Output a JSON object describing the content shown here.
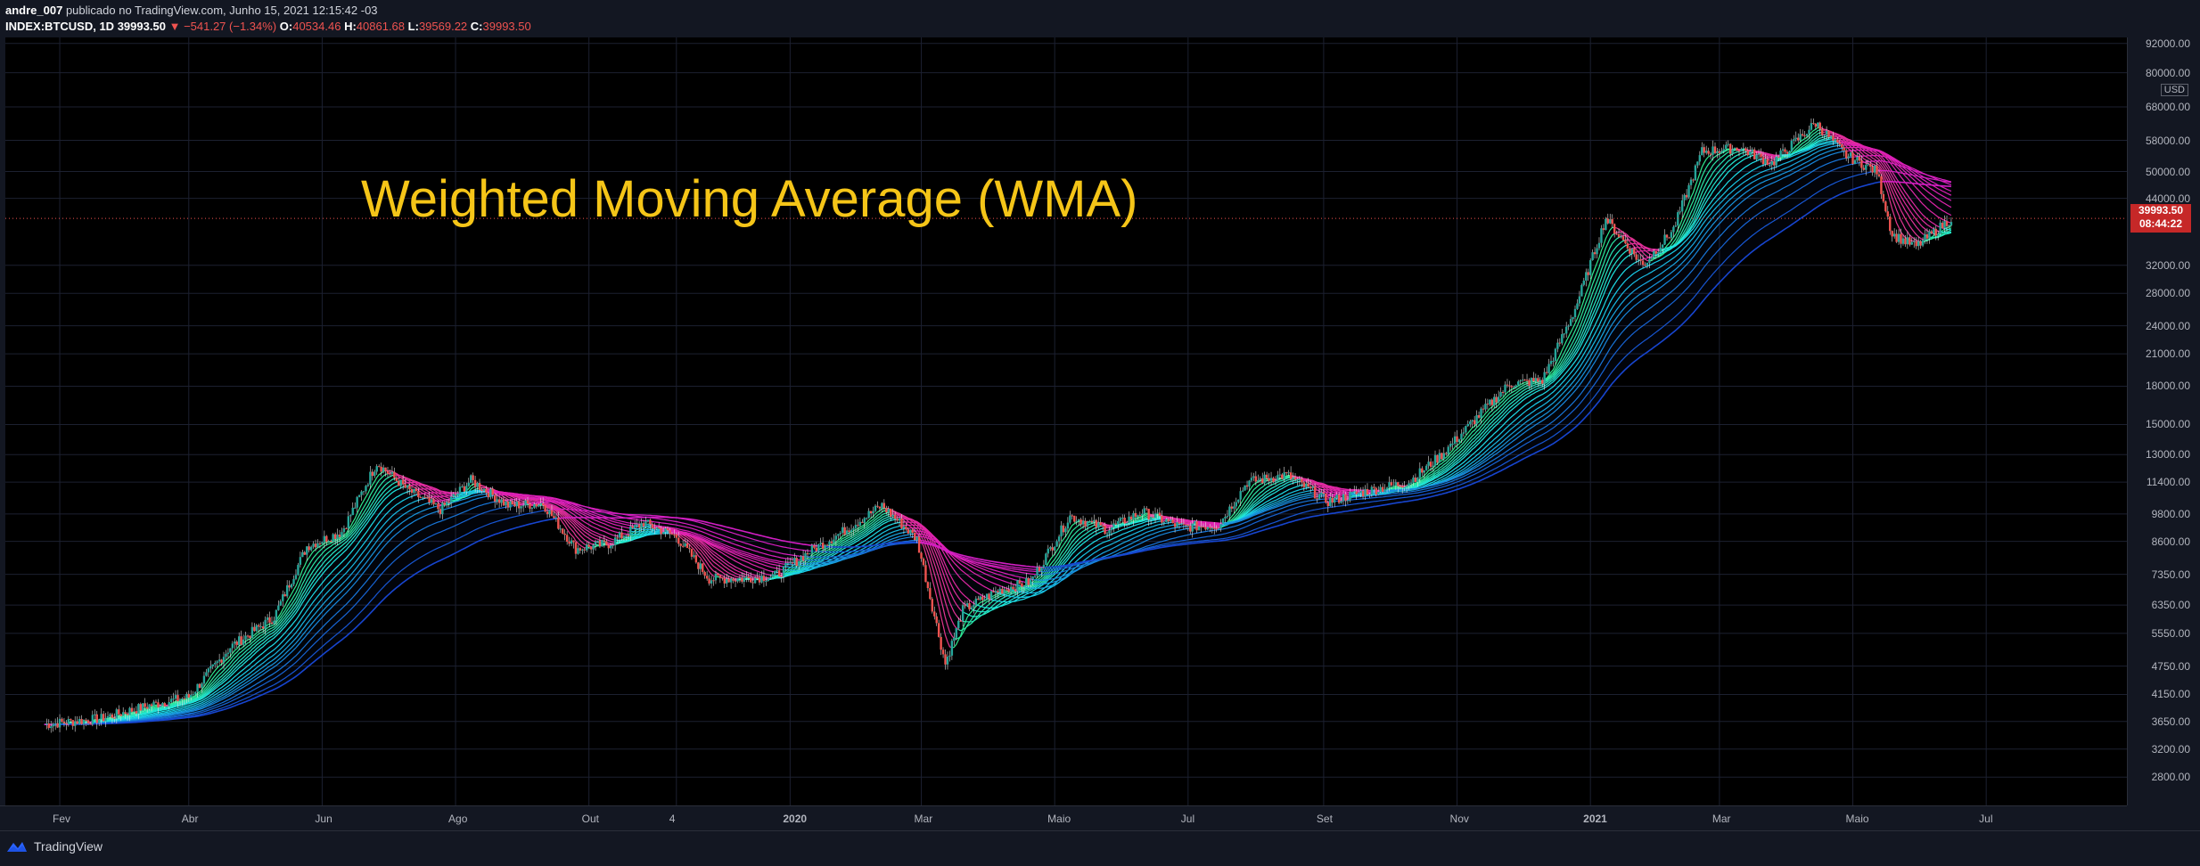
{
  "header": {
    "author": "andre_007",
    "published_text": "publicado no TradingView.com, Junho 15, 2021 12:15:42 -03",
    "symbol": "INDEX:BTCUSD, 1D",
    "price": "39993.50",
    "change": "−541.27 (−1.34%)",
    "o_label": "O:",
    "o_value": "40534.46",
    "h_label": "H:",
    "h_value": "40861.68",
    "l_label": "L:",
    "l_value": "39569.22",
    "c_label": "C:",
    "c_value": "39993.50"
  },
  "overlay_title": "Weighted Moving Average (WMA)",
  "price_badge": {
    "price": "39993.50",
    "countdown": "08:44:22"
  },
  "currency": "USD",
  "price_scale": [
    "92000.00",
    "80000.00",
    "68000.00",
    "58000.00",
    "50000.00",
    "44000.00",
    "32000.00",
    "28000.00",
    "24000.00",
    "21000.00",
    "18000.00",
    "15000.00",
    "13000.00",
    "11400.00",
    "9800.00",
    "8600.00",
    "7350.00",
    "6350.00",
    "5550.00",
    "4750.00",
    "4150.00",
    "3650.00",
    "3200.00",
    "2800.00"
  ],
  "time_scale": [
    "Fev",
    "Abr",
    "Jun",
    "Ago",
    "Out",
    "4",
    "2020",
    "Mar",
    "Maio",
    "Jul",
    "Set",
    "Nov",
    "2021",
    "Mar",
    "Maio",
    "Jul"
  ],
  "footer": {
    "brand": "TradingView"
  },
  "colors": {
    "title": "#f5c518",
    "down": "#ef5350",
    "up": "#26a69a",
    "badge": "#c62828"
  },
  "chart_data": {
    "type": "line",
    "symbol": "INDEX:BTCUSD",
    "scale": "log",
    "ylim": [
      2600,
      92000
    ],
    "series": [
      {
        "x": [
          "2019-01-25",
          "2019-02-20",
          "2019-03-15",
          "2019-04-01",
          "2019-04-20",
          "2019-05-10",
          "2019-05-25",
          "2019-06-10",
          "2019-06-26",
          "2019-07-10",
          "2019-07-25",
          "2019-08-08",
          "2019-08-25",
          "2019-09-10",
          "2019-09-25",
          "2019-10-10",
          "2019-10-26",
          "2019-11-10",
          "2019-11-25",
          "2019-12-10",
          "2019-12-25",
          "2020-01-10",
          "2020-01-25",
          "2020-02-12",
          "2020-02-28",
          "2020-03-12",
          "2020-03-20",
          "2020-04-05",
          "2020-04-20",
          "2020-05-08",
          "2020-05-25",
          "2020-06-10",
          "2020-06-28",
          "2020-07-15",
          "2020-07-28",
          "2020-08-15",
          "2020-09-03",
          "2020-09-20",
          "2020-10-10",
          "2020-10-25",
          "2020-11-10",
          "2020-11-25",
          "2020-12-10",
          "2020-12-25",
          "2021-01-08",
          "2021-01-25",
          "2021-02-08",
          "2021-02-21",
          "2021-03-10",
          "2021-03-25",
          "2021-04-14",
          "2021-04-28",
          "2021-05-12",
          "2021-05-19",
          "2021-05-30",
          "2021-06-15"
        ],
        "values": [
          3600,
          3700,
          3950,
          4100,
          5200,
          6000,
          8400,
          9000,
          12500,
          11000,
          10000,
          11500,
          10200,
          10300,
          8300,
          8500,
          9400,
          8800,
          7200,
          7200,
          7300,
          8200,
          9000,
          10200,
          8700,
          4800,
          6200,
          6800,
          7100,
          9700,
          9100,
          9900,
          9200,
          9300,
          11400,
          11800,
          10400,
          10900,
          11400,
          13000,
          15500,
          18200,
          18500,
          26000,
          40000,
          32000,
          38000,
          55000,
          56000,
          52000,
          63000,
          54000,
          50000,
          37000,
          35000,
          39993
        ]
      }
    ]
  }
}
